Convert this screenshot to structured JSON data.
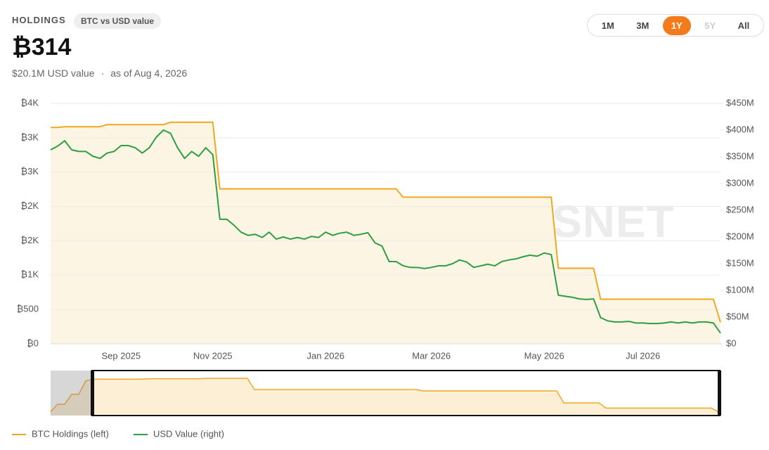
{
  "header": {
    "title": "HOLDINGS",
    "badge": "BTC vs USD value",
    "value": "₿314",
    "usd_value": "$20.1M USD value",
    "separator": "·",
    "as_of": "as of Aug 4, 2026"
  },
  "range_buttons": {
    "options": [
      "1M",
      "3M",
      "1Y",
      "5Y",
      "All"
    ],
    "active": "1Y",
    "disabled": [
      "5Y"
    ]
  },
  "watermark": "BITCOINTREASURIESNET",
  "chart_data": [
    {
      "type": "line",
      "grid": true,
      "categories": [
        null,
        null,
        null,
        null,
        null,
        null,
        null,
        null,
        null,
        null,
        "Sep 2025",
        null,
        null,
        null,
        null,
        null,
        null,
        null,
        null,
        null,
        null,
        null,
        null,
        "Nov 2025",
        null,
        null,
        null,
        null,
        null,
        null,
        null,
        null,
        null,
        null,
        null,
        null,
        null,
        null,
        null,
        "Jan 2026",
        null,
        null,
        null,
        null,
        null,
        null,
        null,
        null,
        null,
        null,
        null,
        null,
        null,
        null,
        "Mar 2026",
        null,
        null,
        null,
        null,
        null,
        null,
        null,
        null,
        null,
        null,
        null,
        null,
        null,
        null,
        null,
        "May 2026",
        null,
        null,
        null,
        null,
        null,
        null,
        null,
        null,
        null,
        null,
        null,
        null,
        null,
        "Jul 2026",
        null,
        null,
        null,
        null,
        null,
        null,
        null,
        null,
        null,
        null,
        null
      ],
      "ylim": [
        0,
        3500
      ],
      "yticks": [
        {
          "value": 0,
          "label": "₿0"
        },
        {
          "value": 500,
          "label": "₿500"
        },
        {
          "value": 1000,
          "label": "₿1K"
        },
        {
          "value": 1500,
          "label": "₿2K"
        },
        {
          "value": 2000,
          "label": "₿2K"
        },
        {
          "value": 2500,
          "label": "₿3K"
        },
        {
          "value": 3000,
          "label": "₿3K"
        },
        {
          "value": 3500,
          "label": "₿4K"
        }
      ],
      "y2lim": [
        0,
        450000000
      ],
      "y2ticks": [
        {
          "value": 0,
          "label": "$0"
        },
        {
          "value": 50000000,
          "label": "$50M"
        },
        {
          "value": 100000000,
          "label": "$100M"
        },
        {
          "value": 150000000,
          "label": "$150M"
        },
        {
          "value": 200000000,
          "label": "$200M"
        },
        {
          "value": 250000000,
          "label": "$250M"
        },
        {
          "value": 300000000,
          "label": "$300M"
        },
        {
          "value": 350000000,
          "label": "$350M"
        },
        {
          "value": 400000000,
          "label": "$400M"
        },
        {
          "value": 450000000,
          "label": "$450M"
        }
      ],
      "series": [
        {
          "name": "BTC Holdings (left)",
          "color": "#f0a81e",
          "fill": "#fdf5e4",
          "values": [
            3150,
            3150,
            3160,
            3160,
            3160,
            3160,
            3160,
            3160,
            3190,
            3190,
            3190,
            3190,
            3190,
            3190,
            3190,
            3190,
            3190,
            3225,
            3225,
            3225,
            3225,
            3225,
            3225,
            3225,
            2255,
            2255,
            2255,
            2255,
            2255,
            2255,
            2255,
            2255,
            2255,
            2255,
            2255,
            2255,
            2255,
            2255,
            2255,
            2255,
            2255,
            2255,
            2255,
            2255,
            2255,
            2255,
            2255,
            2255,
            2255,
            2255,
            2135,
            2135,
            2135,
            2135,
            2135,
            2135,
            2135,
            2135,
            2135,
            2135,
            2135,
            2135,
            2135,
            2135,
            2135,
            2135,
            2135,
            2135,
            2135,
            2135,
            2135,
            2135,
            1100,
            1100,
            1100,
            1100,
            1100,
            1100,
            650,
            650,
            650,
            650,
            650,
            650,
            650,
            650,
            650,
            650,
            650,
            650,
            650,
            650,
            650,
            650,
            650,
            314
          ]
        },
        {
          "name": "USD Value (right)",
          "color": "#2e9e44",
          "axis": "y2",
          "values": [
            363000000,
            370000000,
            380000000,
            363000000,
            360000000,
            360000000,
            351000000,
            347000000,
            357000000,
            360000000,
            371000000,
            371000000,
            367000000,
            357000000,
            367000000,
            387000000,
            400000000,
            394000000,
            367000000,
            347000000,
            360000000,
            351000000,
            367000000,
            354000000,
            233000000,
            233000000,
            222000000,
            209000000,
            203000000,
            205000000,
            199000000,
            209000000,
            196000000,
            200000000,
            196000000,
            199000000,
            196000000,
            201000000,
            199000000,
            209000000,
            203000000,
            207000000,
            209000000,
            203000000,
            205000000,
            208000000,
            189000000,
            183000000,
            154000000,
            154000000,
            146000000,
            143000000,
            143000000,
            141000000,
            143000000,
            146000000,
            146000000,
            150000000,
            157000000,
            153000000,
            143000000,
            146000000,
            149000000,
            146000000,
            154000000,
            157000000,
            159000000,
            163000000,
            166000000,
            164000000,
            170000000,
            167000000,
            91000000,
            89000000,
            87000000,
            84000000,
            83000000,
            84000000,
            49000000,
            43000000,
            41000000,
            41000000,
            42000000,
            39000000,
            39000000,
            38000000,
            38000000,
            39000000,
            41000000,
            39000000,
            41000000,
            39000000,
            41000000,
            41000000,
            39000000,
            20100000
          ]
        }
      ]
    },
    {
      "type": "area",
      "color": "#f0a81e",
      "fill": "#fcefd6",
      "ylim": [
        0,
        3900
      ],
      "values": [
        340,
        980,
        980,
        1840,
        1840,
        3000,
        3150,
        3150,
        3150,
        3150,
        3150,
        3150,
        3150,
        3150,
        3190,
        3190,
        3190,
        3190,
        3190,
        3190,
        3190,
        3190,
        3225,
        3225,
        3225,
        3225,
        3225,
        3225,
        3225,
        2255,
        2255,
        2255,
        2255,
        2255,
        2255,
        2255,
        2255,
        2255,
        2255,
        2255,
        2255,
        2255,
        2255,
        2255,
        2255,
        2255,
        2255,
        2255,
        2255,
        2255,
        2255,
        2255,
        2255,
        2135,
        2135,
        2135,
        2135,
        2135,
        2135,
        2135,
        2135,
        2135,
        2135,
        2135,
        2135,
        2135,
        2135,
        2135,
        2135,
        2135,
        2135,
        2135,
        2135,
        1100,
        1100,
        1100,
        1100,
        1100,
        1100,
        650,
        650,
        650,
        650,
        650,
        650,
        650,
        650,
        650,
        650,
        650,
        650,
        650,
        650,
        650,
        650,
        314
      ]
    }
  ]
}
